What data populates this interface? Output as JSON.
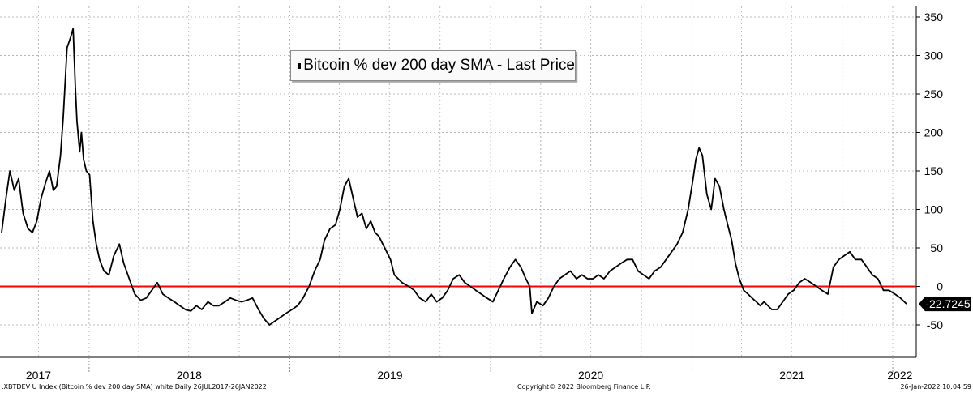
{
  "chart_data": {
    "type": "line",
    "legend": {
      "label": "Bitcoin % dev 200 day SMA - Last Price",
      "placement": "top-center"
    },
    "series": [
      {
        "name": "Bitcoin % dev 200 day SMA - Last Price",
        "color": "#000000",
        "last_value_label": "-22.7245",
        "x": [
          "2017-07-26",
          "2017-08-03",
          "2017-08-10",
          "2017-08-18",
          "2017-08-26",
          "2017-09-03",
          "2017-09-12",
          "2017-09-20",
          "2017-09-28",
          "2017-10-06",
          "2017-10-14",
          "2017-10-21",
          "2017-10-28",
          "2017-11-03",
          "2017-11-10",
          "2017-11-15",
          "2017-11-22",
          "2017-11-29",
          "2017-12-03",
          "2017-12-07",
          "2017-12-10",
          "2017-12-15",
          "2017-12-18",
          "2017-12-22",
          "2017-12-27",
          "2018-01-02",
          "2018-01-08",
          "2018-01-14",
          "2018-01-20",
          "2018-01-28",
          "2018-02-06",
          "2018-02-15",
          "2018-02-25",
          "2018-03-05",
          "2018-03-15",
          "2018-03-25",
          "2018-04-05",
          "2018-04-15",
          "2018-04-25",
          "2018-05-05",
          "2018-05-15",
          "2018-05-25",
          "2018-06-05",
          "2018-06-15",
          "2018-06-25",
          "2018-07-05",
          "2018-07-15",
          "2018-07-25",
          "2018-08-05",
          "2018-08-15",
          "2018-08-25",
          "2018-09-05",
          "2018-09-15",
          "2018-09-25",
          "2018-10-05",
          "2018-10-15",
          "2018-10-25",
          "2018-11-05",
          "2018-11-15",
          "2018-11-25",
          "2018-12-05",
          "2018-12-15",
          "2018-12-25",
          "2019-01-05",
          "2019-01-15",
          "2019-01-25",
          "2019-02-05",
          "2019-02-15",
          "2019-02-25",
          "2019-03-05",
          "2019-03-15",
          "2019-03-25",
          "2019-04-02",
          "2019-04-10",
          "2019-04-18",
          "2019-04-26",
          "2019-05-04",
          "2019-05-12",
          "2019-05-20",
          "2019-05-28",
          "2019-06-05",
          "2019-06-12",
          "2019-06-19",
          "2019-06-26",
          "2019-07-03",
          "2019-07-10",
          "2019-07-17",
          "2019-07-24",
          "2019-08-05",
          "2019-08-15",
          "2019-08-25",
          "2019-09-05",
          "2019-09-15",
          "2019-09-25",
          "2019-10-05",
          "2019-10-15",
          "2019-10-25",
          "2019-11-05",
          "2019-11-15",
          "2019-11-25",
          "2019-12-05",
          "2019-12-15",
          "2019-12-25",
          "2020-01-05",
          "2020-01-15",
          "2020-01-25",
          "2020-02-05",
          "2020-02-15",
          "2020-02-25",
          "2020-03-05",
          "2020-03-12",
          "2020-03-16",
          "2020-03-25",
          "2020-04-05",
          "2020-04-15",
          "2020-04-25",
          "2020-05-05",
          "2020-05-15",
          "2020-05-25",
          "2020-06-05",
          "2020-06-15",
          "2020-06-25",
          "2020-07-05",
          "2020-07-15",
          "2020-07-25",
          "2020-08-05",
          "2020-08-15",
          "2020-08-25",
          "2020-09-05",
          "2020-09-15",
          "2020-09-25",
          "2020-10-05",
          "2020-10-15",
          "2020-10-25",
          "2020-11-05",
          "2020-11-15",
          "2020-11-25",
          "2020-12-05",
          "2020-12-15",
          "2020-12-25",
          "2021-01-03",
          "2021-01-08",
          "2021-01-14",
          "2021-01-20",
          "2021-01-28",
          "2021-02-05",
          "2021-02-12",
          "2021-02-20",
          "2021-02-28",
          "2021-03-07",
          "2021-03-14",
          "2021-03-21",
          "2021-03-28",
          "2021-04-05",
          "2021-04-13",
          "2021-04-20",
          "2021-04-28",
          "2021-05-05",
          "2021-05-12",
          "2021-05-19",
          "2021-05-26",
          "2021-06-05",
          "2021-06-15",
          "2021-06-25",
          "2021-07-05",
          "2021-07-15",
          "2021-07-25",
          "2021-08-05",
          "2021-08-15",
          "2021-08-25",
          "2021-09-05",
          "2021-09-15",
          "2021-09-25",
          "2021-10-05",
          "2021-10-15",
          "2021-10-25",
          "2021-11-05",
          "2021-11-15",
          "2021-11-25",
          "2021-12-05",
          "2021-12-15",
          "2021-12-25",
          "2022-01-05",
          "2022-01-15",
          "2022-01-26"
        ],
        "y": [
          70,
          115,
          150,
          125,
          140,
          95,
          75,
          70,
          85,
          115,
          135,
          150,
          125,
          130,
          170,
          220,
          310,
          325,
          335,
          260,
          215,
          175,
          200,
          165,
          150,
          145,
          85,
          55,
          35,
          20,
          15,
          40,
          55,
          30,
          10,
          -10,
          -18,
          -15,
          -5,
          5,
          -10,
          -15,
          -20,
          -25,
          -30,
          -32,
          -25,
          -30,
          -20,
          -25,
          -25,
          -20,
          -15,
          -18,
          -20,
          -18,
          -15,
          -30,
          -42,
          -50,
          -45,
          -40,
          -35,
          -30,
          -25,
          -15,
          0,
          20,
          35,
          60,
          75,
          80,
          100,
          130,
          140,
          115,
          90,
          95,
          75,
          85,
          70,
          65,
          55,
          45,
          35,
          15,
          10,
          5,
          0,
          -5,
          -15,
          -20,
          -10,
          -20,
          -15,
          -5,
          10,
          15,
          5,
          0,
          -5,
          -10,
          -15,
          -20,
          -5,
          10,
          25,
          35,
          25,
          10,
          0,
          -35,
          -20,
          -25,
          -15,
          0,
          10,
          15,
          20,
          10,
          15,
          10,
          10,
          15,
          10,
          20,
          25,
          30,
          35,
          35,
          20,
          15,
          10,
          20,
          25,
          35,
          45,
          55,
          70,
          100,
          140,
          165,
          180,
          170,
          120,
          100,
          140,
          130,
          100,
          80,
          60,
          30,
          10,
          -5,
          -10,
          -15,
          -20,
          -25,
          -20,
          -25,
          -30,
          -30,
          -20,
          -10,
          -5,
          5,
          10,
          5,
          0,
          -5,
          -10,
          25,
          35,
          40,
          45,
          35,
          35,
          25,
          15,
          10,
          -5,
          -5,
          -10,
          -15,
          -22.72
        ]
      }
    ],
    "reference_line": {
      "value": 0,
      "color": "#ff0000"
    },
    "y_axis": {
      "position": "right",
      "ylim": [
        -100,
        350
      ],
      "ticks": [
        "350",
        "300",
        "250",
        "200",
        "150",
        "100",
        "50",
        "0",
        "-50"
      ]
    },
    "x_axis": {
      "year_labels": [
        {
          "label": "2017",
          "date": "2017-10-01"
        },
        {
          "label": "2018",
          "date": "2018-07-02"
        },
        {
          "label": "2019",
          "date": "2019-07-02"
        },
        {
          "label": "2020",
          "date": "2020-07-01"
        },
        {
          "label": "2021",
          "date": "2021-07-02"
        },
        {
          "label": "2022",
          "date": "2022-01-14"
        }
      ]
    },
    "grid": true
  },
  "footer": {
    "left": ".XBTDEV U Index (Bitcoin % dev 200 day SMA) white  Daily 26JUL2017-26JAN2022",
    "center": "Copyright© 2022 Bloomberg Finance L.P.",
    "right": "26-Jan-2022 10:04:59"
  }
}
